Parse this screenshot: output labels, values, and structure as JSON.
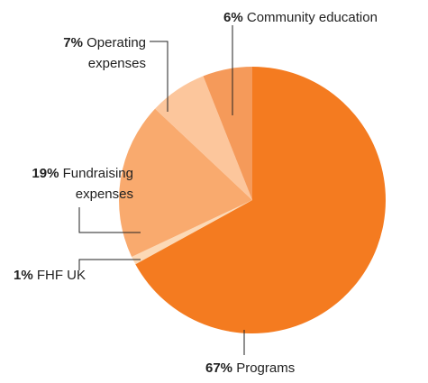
{
  "chart_data": {
    "type": "pie",
    "categories": [
      "Programs",
      "FHF UK",
      "Fundraising expenses",
      "Operating expenses",
      "Community education"
    ],
    "values": [
      67,
      1,
      19,
      7,
      6
    ],
    "value_labels": [
      "67%",
      "1%",
      "19%",
      "7%",
      "6%"
    ],
    "colors": [
      "#f47b20",
      "#fcd9b6",
      "#f9aa6e",
      "#fcc69c",
      "#f59a5a"
    ]
  }
}
